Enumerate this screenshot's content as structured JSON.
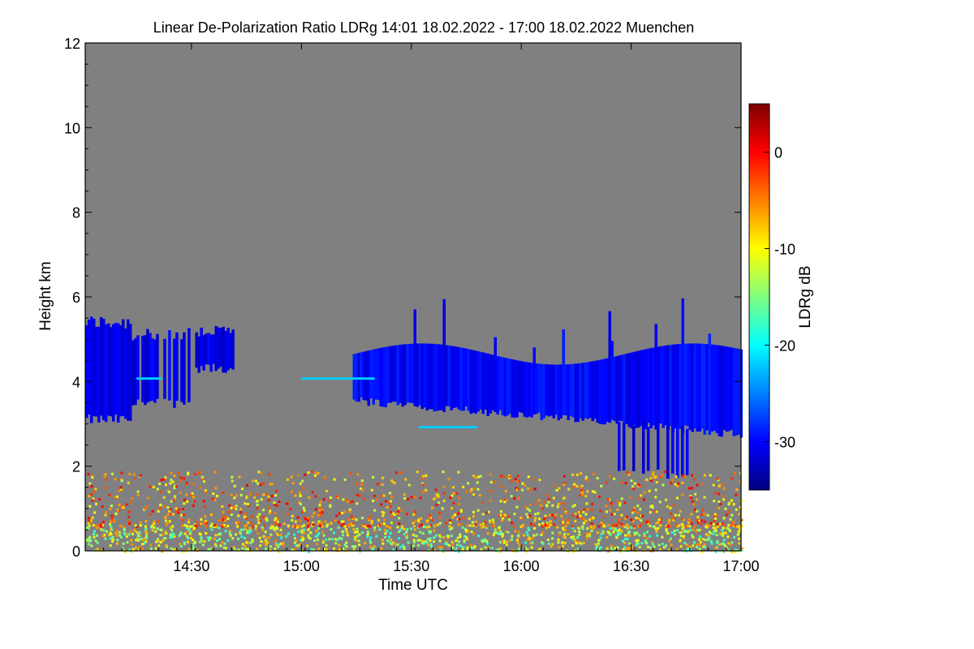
{
  "chart_data": {
    "type": "heatmap",
    "title": "Linear De-Polarization Ratio LDRg   14:01 18.02.2022 - 17:00 18.02.2022 Muenchen",
    "xlabel": "Time UTC",
    "ylabel": "Height km",
    "x_range_minutes_utc": [
      841,
      1020
    ],
    "x_ticks": [
      {
        "minutes": 870,
        "label": "14:30"
      },
      {
        "minutes": 900,
        "label": "15:00"
      },
      {
        "minutes": 930,
        "label": "15:30"
      },
      {
        "minutes": 960,
        "label": "16:00"
      },
      {
        "minutes": 990,
        "label": "16:30"
      },
      {
        "minutes": 1020,
        "label": "17:00"
      }
    ],
    "ylim": [
      0,
      12
    ],
    "y_ticks": [
      0,
      2,
      4,
      6,
      8,
      10,
      12
    ],
    "background_color": "#808080",
    "colorbar": {
      "label": "LDRg dB",
      "range": [
        -35,
        5
      ],
      "ticks": [
        0,
        -10,
        -20,
        -30
      ],
      "colors": [
        "#00007f",
        "#0000ff",
        "#007fff",
        "#00ffff",
        "#7fff7f",
        "#ffff00",
        "#ff7f00",
        "#ff0000",
        "#7f0000"
      ]
    },
    "regions": [
      {
        "name": "cloud layer early",
        "t_start": 841,
        "t_end": 853,
        "base_km": 3.1,
        "top_km": 5.4,
        "ldr_db": -31
      },
      {
        "name": "cloud patches",
        "t_start": 853,
        "t_end": 871,
        "base_km": 3.5,
        "top_km": 5.1,
        "ldr_db": -31
      },
      {
        "name": "thin cloud",
        "t_start": 871,
        "t_end": 881,
        "base_km": 4.3,
        "top_km": 5.2,
        "ldr_db": -31
      },
      {
        "name": "main cloud layer",
        "t_start": 914,
        "t_end": 1020,
        "base_km": 2.8,
        "top_km": 5.0,
        "ldr_db": -30
      },
      {
        "name": "fall streaks",
        "t_start": 985,
        "t_end": 1005,
        "base_km": 1.8,
        "top_km": 3.0,
        "ldr_db": -31
      },
      {
        "name": "boundary layer aerosol",
        "t_start": 841,
        "t_end": 1020,
        "base_km": 0.0,
        "top_km": 0.6,
        "ldr_db": -12
      },
      {
        "name": "aerosol speckle",
        "t_start": 841,
        "t_end": 1020,
        "base_km": 0.6,
        "top_km": 1.9,
        "ldr_db": -6
      }
    ]
  }
}
